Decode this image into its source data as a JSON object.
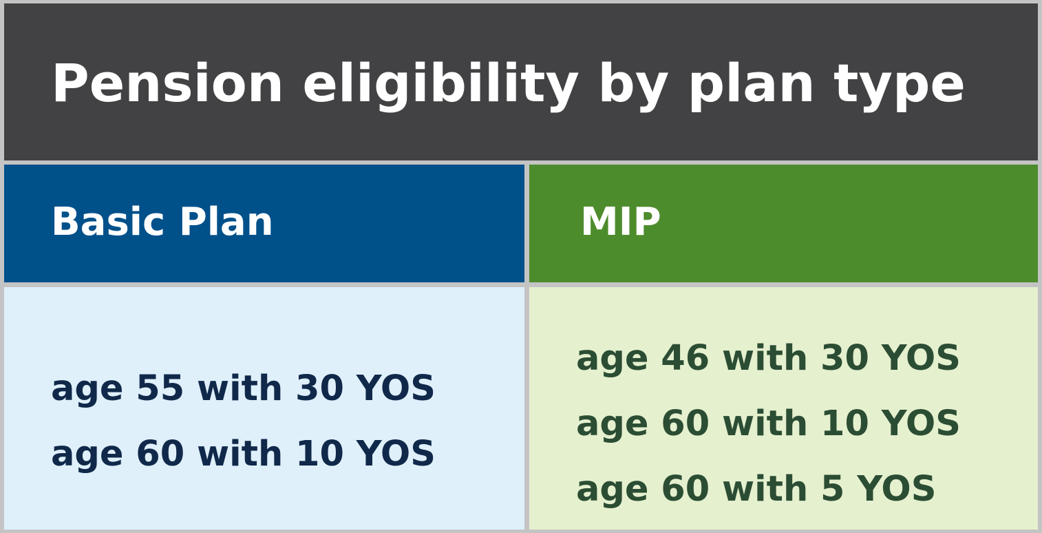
{
  "title": "Pension eligibility by plan type",
  "colors": {
    "title_bg": "#424244",
    "basic_header_bg": "#00508a",
    "mip_header_bg": "#4d8c2c",
    "basic_body_bg": "#dff0fb",
    "mip_body_bg": "#e5f0cf",
    "basic_text": "#10294a",
    "mip_text": "#2b4d33",
    "border": "#c4c4c4"
  },
  "columns": [
    {
      "header": "Basic Plan",
      "rules": [
        "age 55 with 30 YOS",
        "age 60 with 10 YOS"
      ]
    },
    {
      "header": "MIP",
      "rules": [
        "age 46 with 30 YOS",
        "age 60 with 10 YOS",
        "age 60 with 5 YOS"
      ]
    }
  ]
}
